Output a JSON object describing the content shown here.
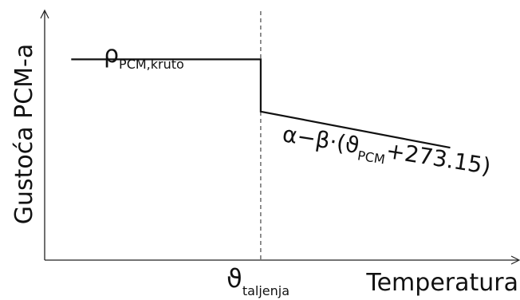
{
  "chart_data": {
    "type": "line",
    "xlabel": "Temperatura",
    "ylabel": "Gustoća PCM-a",
    "x_marker": {
      "symbol": "ϑ",
      "subscript": "taljenja"
    },
    "annotations": {
      "solid_density": {
        "symbol": "ρ",
        "subscript": "PCM,kruto"
      },
      "liquid_density": {
        "prefix": "α−β·(ϑ",
        "subscript": "PCM",
        "suffix": "+273.15)"
      }
    },
    "series": [
      {
        "x": [
          0,
          0.5,
          0.5,
          1
        ],
        "y": [
          1,
          1,
          0.74,
          0.56
        ]
      }
    ],
    "xlim": [
      -0.07,
      1.18
    ],
    "ylim": [
      0,
      1.24
    ],
    "grid": false,
    "colors": {
      "line": "#111111",
      "axis": "#222222",
      "marker_line": "#555555"
    }
  }
}
